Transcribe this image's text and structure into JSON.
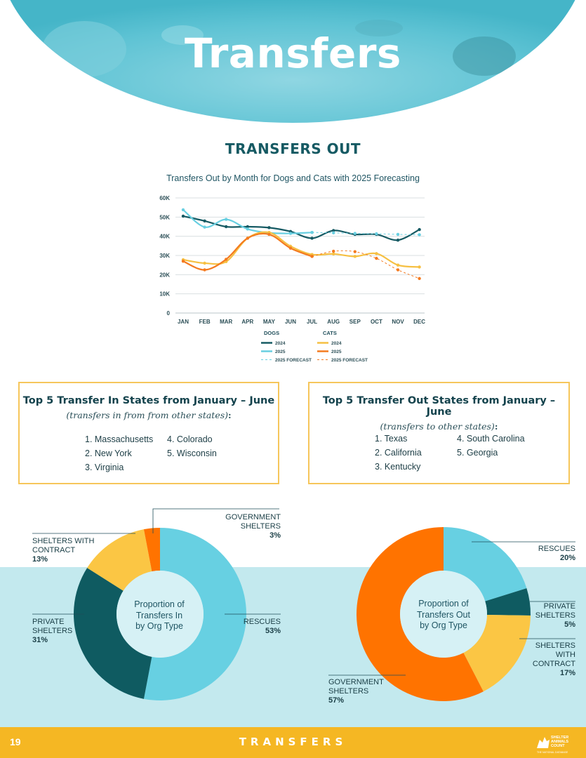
{
  "page": {
    "title": "Transfers",
    "section_title": "TRANSFERS OUT",
    "footer_page": "19",
    "footer_title": "TRANSFERS",
    "logo_text": [
      "SHELTER",
      "ANIMALS",
      "COUNT"
    ],
    "logo_sub": "THE NATIONAL DATABASE"
  },
  "colors": {
    "dog_2024": "#165a63",
    "dog_2025": "#68cfe1",
    "cat_2024": "#f6c042",
    "cat_2025": "#f47a1f",
    "gov": "#ff7300",
    "contract": "#fbc644",
    "private": "#0f5b61",
    "rescues": "#67d0e2"
  },
  "chart_data": [
    {
      "type": "line",
      "title": "Transfers Out by Month for Dogs and Cats with 2025 Forecasting",
      "x": [
        "JAN",
        "FEB",
        "MAR",
        "APR",
        "MAY",
        "JUN",
        "JUL",
        "AUG",
        "SEP",
        "OCT",
        "NOV",
        "DEC"
      ],
      "ylim": [
        0,
        60000
      ],
      "yticks": [
        "0",
        "10K",
        "20K",
        "30K",
        "40K",
        "50K",
        "60K"
      ],
      "grid": true,
      "legend": {
        "groups": [
          {
            "title": "DOGS",
            "items": [
              "2024",
              "2025",
              "2025 FORECAST"
            ]
          },
          {
            "title": "CATS",
            "items": [
              "2024",
              "2025",
              "2025 FORECAST"
            ]
          }
        ]
      },
      "series": [
        {
          "name": "DOGS 2024",
          "values": [
            50500,
            48000,
            45000,
            45000,
            44500,
            42500,
            39000,
            43000,
            41000,
            41000,
            38000,
            43500
          ]
        },
        {
          "name": "DOGS 2025",
          "values": [
            53800,
            44800,
            48800,
            43800,
            41800,
            41500,
            42000,
            null,
            null,
            null,
            null,
            null
          ]
        },
        {
          "name": "DOGS 2025 FORECAST",
          "values": [
            null,
            null,
            null,
            null,
            null,
            null,
            42000,
            41800,
            41500,
            41300,
            41000,
            40800
          ]
        },
        {
          "name": "CATS 2024",
          "values": [
            27800,
            26000,
            26800,
            39000,
            42000,
            34800,
            30500,
            30800,
            29500,
            31000,
            25000,
            24000
          ]
        },
        {
          "name": "CATS 2025",
          "values": [
            27000,
            22500,
            28000,
            39000,
            41000,
            33800,
            29500,
            null,
            null,
            null,
            null,
            null
          ]
        },
        {
          "name": "CATS 2025 FORECAST",
          "values": [
            null,
            null,
            null,
            null,
            null,
            null,
            29500,
            32200,
            32000,
            28500,
            22500,
            18000
          ]
        }
      ]
    },
    {
      "type": "pie",
      "center": "Proportion of Transfers In by Org Type",
      "slices": [
        {
          "label": "RESCUES",
          "pct": "53%",
          "value": 53,
          "color": "#67d0e2"
        },
        {
          "label": "PRIVATE SHELTERS",
          "pct": "31%",
          "value": 31,
          "color": "#0f5b61"
        },
        {
          "label": "SHELTERS WITH CONTRACT",
          "pct": "13%",
          "value": 13,
          "color": "#fbc644"
        },
        {
          "label": "GOVERNMENT SHELTERS",
          "pct": "3%",
          "value": 3,
          "color": "#ff7300"
        }
      ]
    },
    {
      "type": "pie",
      "center": "Proportion of Transfers Out by Org Type",
      "slices": [
        {
          "label": "RESCUES",
          "pct": "20%",
          "value": 20,
          "color": "#67d0e2"
        },
        {
          "label": "PRIVATE SHELTERS",
          "pct": "5%",
          "value": 5,
          "color": "#0f5b61"
        },
        {
          "label": "SHELTERS WITH CONTRACT",
          "pct": "17%",
          "value": 17,
          "color": "#fbc644"
        },
        {
          "label": "GOVERNMENT SHELTERS",
          "pct": "57%",
          "value": 57,
          "color": "#ff7300"
        }
      ]
    }
  ],
  "boxes": {
    "in": {
      "title": "Top 5 Transfer In States from January – June",
      "sub": "(transfers in from from other states)",
      "colon": ":",
      "states": [
        "1.  Massachusetts",
        "2. New York",
        "3. Virginia",
        "4. Colorado",
        "5. Wisconsin"
      ]
    },
    "out": {
      "title": "Top 5 Transfer Out States from January – June",
      "sub": "(transfers to other states)",
      "colon": ":",
      "states": [
        "1.  Texas",
        "2. California",
        "3. Kentucky",
        "4. South Carolina",
        "5. Georgia"
      ]
    }
  },
  "donut_in": {
    "center": [
      "Proportion of",
      "Transfers In",
      "by Org Type"
    ],
    "labels": {
      "gov": [
        "GOVERNMENT",
        "SHELTERS",
        "3%"
      ],
      "contract": [
        "SHELTERS WITH",
        "CONTRACT",
        "13%"
      ],
      "private": [
        "PRIVATE",
        "SHELTERS",
        "31%"
      ],
      "rescues": [
        "RESCUES",
        "53%"
      ]
    }
  },
  "donut_out": {
    "center": [
      "Proportion of",
      "Transfers Out",
      "by Org Type"
    ],
    "labels": {
      "rescues": [
        "RESCUES",
        "20%"
      ],
      "private": [
        "PRIVATE",
        "SHELTERS",
        "5%"
      ],
      "contract": [
        "SHELTERS",
        "WITH",
        "CONTRACT",
        "17%"
      ],
      "gov": [
        "GOVERNMENT",
        "SHELTERS",
        "57%"
      ]
    }
  }
}
